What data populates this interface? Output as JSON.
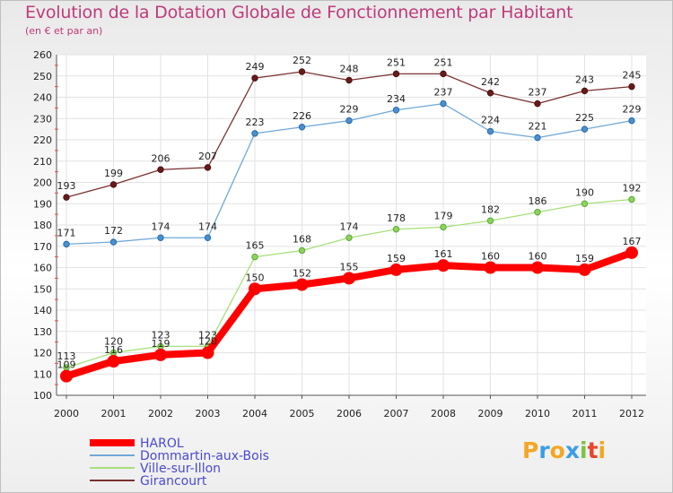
{
  "chart_data": {
    "type": "line",
    "title": "Evolution de la Dotation Globale de Fonctionnement par Habitant",
    "subtitle": "(en € et par an)",
    "xlabel": "",
    "ylabel": "",
    "x": [
      "2000",
      "2001",
      "2002",
      "2003",
      "2004",
      "2005",
      "2006",
      "2007",
      "2008",
      "2009",
      "2010",
      "2011",
      "2012"
    ],
    "ylim": [
      100,
      260
    ],
    "yticks": [
      100,
      110,
      120,
      130,
      140,
      150,
      160,
      170,
      180,
      190,
      200,
      210,
      220,
      230,
      240,
      250,
      260
    ],
    "grid": true,
    "legend_position": "bottom-left",
    "series": [
      {
        "name": "HAROL",
        "color": "#ff0000",
        "values": [
          109,
          116,
          119,
          120,
          150,
          152,
          155,
          159,
          161,
          160,
          160,
          159,
          167
        ]
      },
      {
        "name": "Dommartin-aux-Bois",
        "color": "#6fa8d8",
        "values": [
          171,
          172,
          174,
          174,
          223,
          226,
          229,
          234,
          237,
          224,
          221,
          225,
          229
        ]
      },
      {
        "name": "Ville-sur-Illon",
        "color": "#a6e07a",
        "values": [
          113,
          120,
          123,
          123,
          165,
          168,
          174,
          178,
          179,
          182,
          186,
          190,
          192
        ]
      },
      {
        "name": "Girancourt",
        "color": "#7a3030",
        "values": [
          193,
          199,
          206,
          207,
          249,
          252,
          248,
          251,
          251,
          242,
          237,
          243,
          245
        ]
      }
    ]
  },
  "logo": {
    "letters": [
      "P",
      "r",
      "o",
      "x",
      "i",
      "t",
      "i"
    ],
    "colors": [
      "#f5a623",
      "#3a9ee6",
      "#f5a623",
      "#3a9ee6",
      "#7cc242",
      "#e8452c",
      "#f5a623"
    ]
  }
}
